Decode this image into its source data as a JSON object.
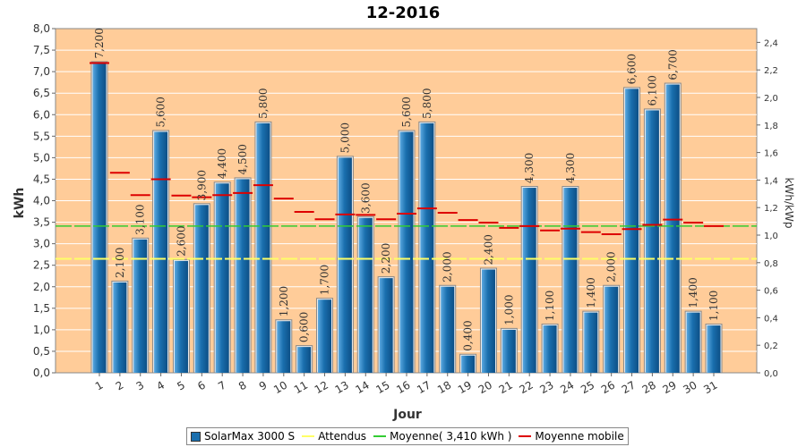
{
  "chart_data": {
    "type": "bar",
    "title": "12-2016",
    "xlabel": "Jour",
    "ylabel": "kWh",
    "y2label": "kWh/kWp",
    "ylim": [
      0,
      8.0
    ],
    "yticks": [
      "0,0",
      "0,5",
      "1,0",
      "1,5",
      "2,0",
      "2,5",
      "3,0",
      "3,5",
      "4,0",
      "4,5",
      "5,0",
      "5,5",
      "6,0",
      "6,5",
      "7,0",
      "7,5",
      "8,0"
    ],
    "y2lim": [
      0,
      2.5
    ],
    "y2ticks": [
      "0,0",
      "0,2",
      "0,4",
      "0,6",
      "0,8",
      "1,0",
      "1,2",
      "1,4",
      "1,6",
      "1,8",
      "2,0",
      "2,2",
      "2,4"
    ],
    "categories": [
      "1",
      "2",
      "3",
      "4",
      "5",
      "6",
      "7",
      "8",
      "9",
      "10",
      "11",
      "12",
      "13",
      "14",
      "15",
      "16",
      "17",
      "18",
      "19",
      "20",
      "21",
      "22",
      "23",
      "24",
      "25",
      "26",
      "27",
      "28",
      "29",
      "30",
      "31"
    ],
    "series": [
      {
        "name": "SolarMax 3000 S",
        "type": "bar",
        "color": "#1a6fae",
        "values": [
          7.2,
          2.1,
          3.1,
          5.6,
          2.6,
          3.9,
          4.4,
          4.5,
          5.8,
          1.2,
          0.6,
          1.7,
          5.0,
          3.6,
          2.2,
          5.6,
          5.8,
          2.0,
          0.4,
          2.4,
          1.0,
          4.3,
          1.1,
          4.3,
          1.4,
          2.0,
          6.6,
          6.1,
          6.7,
          1.4,
          1.1
        ],
        "labels": [
          "7,200",
          "2,100",
          "3,100",
          "5,600",
          "2,600",
          "3,900",
          "4,400",
          "4,500",
          "5,800",
          "1,200",
          "0,600",
          "1,700",
          "5,000",
          "3,600",
          "2,200",
          "5,600",
          "5,800",
          "2,000",
          "0,400",
          "2,400",
          "1,000",
          "4,300",
          "1,100",
          "4,300",
          "1,400",
          "2,000",
          "6,600",
          "6,100",
          "6,700",
          "1,400",
          "1,100"
        ]
      },
      {
        "name": "Attendus",
        "type": "line",
        "color": "#ffff66",
        "value": 2.65
      },
      {
        "name": "Moyenne( 3,410 kWh )",
        "type": "line",
        "color": "#33cc33",
        "value": 3.41
      },
      {
        "name": "Moyenne mobile",
        "type": "step",
        "color": "#dd0000",
        "values": [
          7.2,
          4.65,
          4.13,
          4.5,
          4.12,
          4.08,
          4.13,
          4.18,
          4.36,
          4.05,
          3.74,
          3.57,
          3.68,
          3.67,
          3.57,
          3.7,
          3.82,
          3.72,
          3.55,
          3.49,
          3.37,
          3.41,
          3.31,
          3.35,
          3.27,
          3.22,
          3.34,
          3.44,
          3.56,
          3.49,
          3.41
        ]
      }
    ],
    "background": "#ffcc99",
    "grid": true
  },
  "legend": {
    "items": [
      {
        "label": "SolarMax 3000 S"
      },
      {
        "label": "Attendus"
      },
      {
        "label": "Moyenne( 3,410 kWh )"
      },
      {
        "label": "Moyenne mobile"
      }
    ]
  }
}
